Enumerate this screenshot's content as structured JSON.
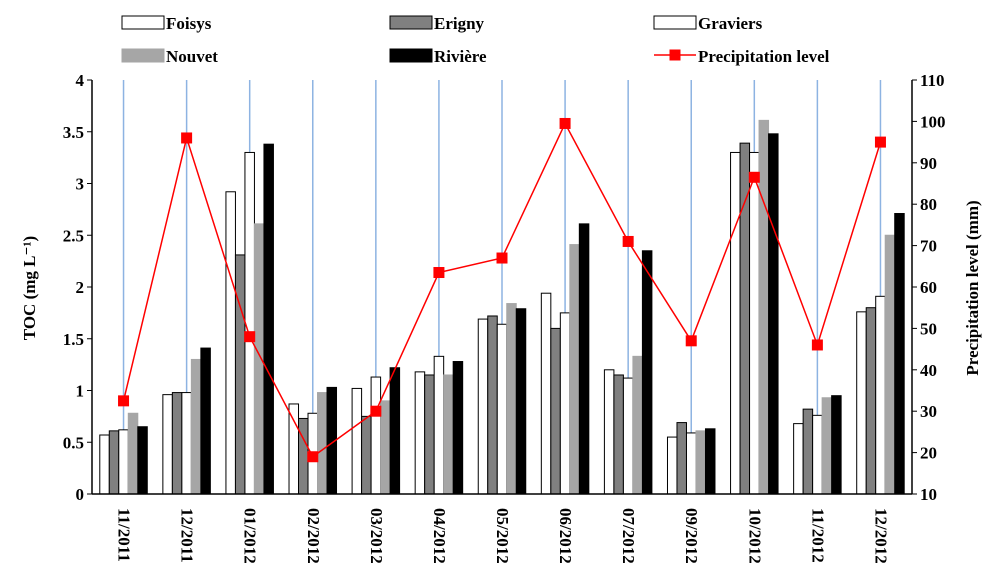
{
  "chart_data": {
    "type": "bar",
    "categories": [
      "11/2011",
      "12/2011",
      "01/2012",
      "02/2012",
      "03/2012",
      "04/2012",
      "05/2012",
      "06/2012",
      "07/2012",
      "09/2012",
      "10/2012",
      "11/2012",
      "12/2012"
    ],
    "ylabel": "TOC (mg L⁻¹)",
    "y2label": "Precipitation level (mm)",
    "ylim": [
      0,
      4
    ],
    "y2lim": [
      10,
      110
    ],
    "yticks": [
      "0",
      "0.5",
      "1",
      "1.5",
      "2",
      "2.5",
      "3",
      "3.5",
      "4"
    ],
    "y2ticks": [
      "10",
      "20",
      "30",
      "40",
      "50",
      "60",
      "70",
      "80",
      "90",
      "100",
      "110"
    ],
    "grid": "vertical lines at categories",
    "legend_position": "top",
    "series": [
      {
        "name": "Foisys",
        "style": "bar",
        "fill": "#ffffff",
        "stroke": "#000000",
        "values": [
          0.57,
          0.96,
          2.92,
          0.87,
          1.02,
          1.18,
          1.69,
          1.94,
          1.2,
          0.55,
          3.3,
          0.68,
          1.76
        ]
      },
      {
        "name": "Erigny",
        "style": "bar",
        "fill": "#808080",
        "stroke": "#000000",
        "values": [
          0.61,
          0.98,
          2.31,
          0.73,
          0.75,
          1.15,
          1.72,
          1.6,
          1.15,
          0.69,
          3.39,
          0.82,
          1.8
        ]
      },
      {
        "name": "Graviers",
        "style": "bar",
        "fill": "#ffffff",
        "stroke": "#000000",
        "values": [
          0.62,
          0.98,
          3.3,
          0.78,
          1.13,
          1.33,
          1.64,
          1.75,
          1.12,
          0.59,
          3.3,
          0.76,
          1.91
        ]
      },
      {
        "name": "Nouvet",
        "style": "bar",
        "fill": "#a6a6a6",
        "stroke": "#a6a6a6",
        "values": [
          0.78,
          1.3,
          2.61,
          0.98,
          0.9,
          1.15,
          1.84,
          2.41,
          1.33,
          0.61,
          3.61,
          0.93,
          2.5
        ]
      },
      {
        "name": "Rivière",
        "style": "bar",
        "fill": "#000000",
        "stroke": "#000000",
        "values": [
          0.65,
          1.41,
          3.38,
          1.03,
          1.22,
          1.28,
          1.79,
          2.61,
          2.35,
          0.63,
          3.48,
          0.95,
          2.71
        ]
      },
      {
        "name": "Precipitation level",
        "style": "line",
        "axis": "y2",
        "color": "#ff0000",
        "marker": "square",
        "values": [
          32.5,
          96,
          48,
          19,
          30,
          63.5,
          67,
          99.5,
          71,
          47,
          86.5,
          46,
          95
        ]
      }
    ]
  },
  "colors": {
    "gridline": "#8db3e2",
    "precipitation": "#ff0000"
  }
}
